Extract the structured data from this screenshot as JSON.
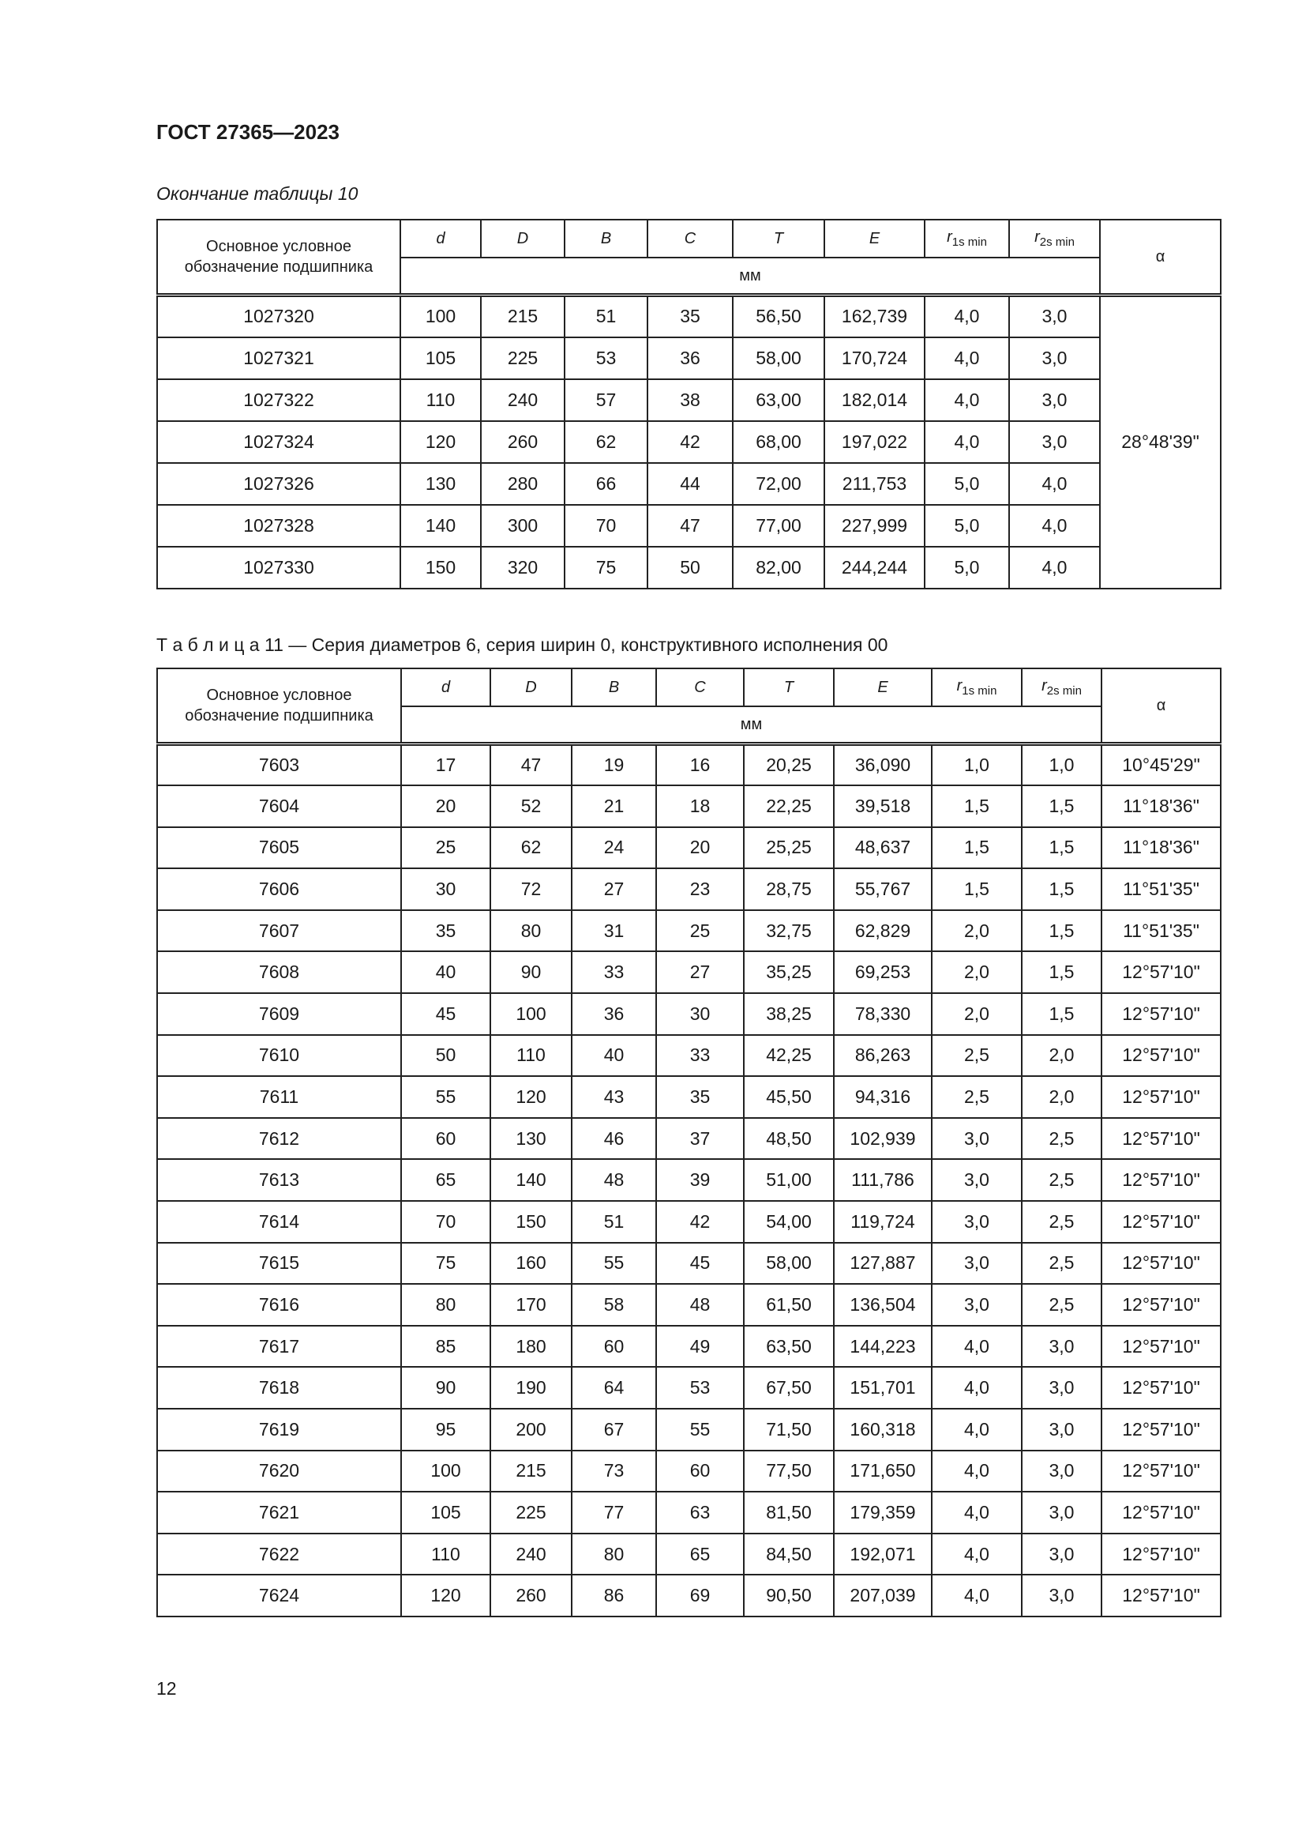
{
  "document_header": "ГОСТ 27365—2023",
  "page_number": "12",
  "columns": {
    "designation": "Основное условное обозначение подшипника",
    "symbols": [
      {
        "base": "d",
        "sub": ""
      },
      {
        "base": "D",
        "sub": ""
      },
      {
        "base": "B",
        "sub": ""
      },
      {
        "base": "C",
        "sub": ""
      },
      {
        "base": "T",
        "sub": ""
      },
      {
        "base": "E",
        "sub": ""
      },
      {
        "base": "r",
        "sub": "1s min"
      },
      {
        "base": "r",
        "sub": "2s min"
      }
    ],
    "units": "мм",
    "alpha": "α"
  },
  "table10": {
    "caption": "Окончание таблицы 10",
    "alpha_merged": "28°48'39\"",
    "rows": [
      [
        "1027320",
        "100",
        "215",
        "51",
        "35",
        "56,50",
        "162,739",
        "4,0",
        "3,0"
      ],
      [
        "1027321",
        "105",
        "225",
        "53",
        "36",
        "58,00",
        "170,724",
        "4,0",
        "3,0"
      ],
      [
        "1027322",
        "110",
        "240",
        "57",
        "38",
        "63,00",
        "182,014",
        "4,0",
        "3,0"
      ],
      [
        "1027324",
        "120",
        "260",
        "62",
        "42",
        "68,00",
        "197,022",
        "4,0",
        "3,0"
      ],
      [
        "1027326",
        "130",
        "280",
        "66",
        "44",
        "72,00",
        "211,753",
        "5,0",
        "4,0"
      ],
      [
        "1027328",
        "140",
        "300",
        "70",
        "47",
        "77,00",
        "227,999",
        "5,0",
        "4,0"
      ],
      [
        "1027330",
        "150",
        "320",
        "75",
        "50",
        "82,00",
        "244,244",
        "5,0",
        "4,0"
      ]
    ]
  },
  "table11": {
    "caption": "Т а б л и ц а  11 — Серия диаметров 6, серия ширин 0, конструктивного исполнения 00",
    "rows": [
      [
        "7603",
        "17",
        "47",
        "19",
        "16",
        "20,25",
        "36,090",
        "1,0",
        "1,0",
        "10°45'29\""
      ],
      [
        "7604",
        "20",
        "52",
        "21",
        "18",
        "22,25",
        "39,518",
        "1,5",
        "1,5",
        "11°18'36\""
      ],
      [
        "7605",
        "25",
        "62",
        "24",
        "20",
        "25,25",
        "48,637",
        "1,5",
        "1,5",
        "11°18'36\""
      ],
      [
        "7606",
        "30",
        "72",
        "27",
        "23",
        "28,75",
        "55,767",
        "1,5",
        "1,5",
        "11°51'35\""
      ],
      [
        "7607",
        "35",
        "80",
        "31",
        "25",
        "32,75",
        "62,829",
        "2,0",
        "1,5",
        "11°51'35\""
      ],
      [
        "7608",
        "40",
        "90",
        "33",
        "27",
        "35,25",
        "69,253",
        "2,0",
        "1,5",
        "12°57'10\""
      ],
      [
        "7609",
        "45",
        "100",
        "36",
        "30",
        "38,25",
        "78,330",
        "2,0",
        "1,5",
        "12°57'10\""
      ],
      [
        "7610",
        "50",
        "110",
        "40",
        "33",
        "42,25",
        "86,263",
        "2,5",
        "2,0",
        "12°57'10\""
      ],
      [
        "7611",
        "55",
        "120",
        "43",
        "35",
        "45,50",
        "94,316",
        "2,5",
        "2,0",
        "12°57'10\""
      ],
      [
        "7612",
        "60",
        "130",
        "46",
        "37",
        "48,50",
        "102,939",
        "3,0",
        "2,5",
        "12°57'10\""
      ],
      [
        "7613",
        "65",
        "140",
        "48",
        "39",
        "51,00",
        "111,786",
        "3,0",
        "2,5",
        "12°57'10\""
      ],
      [
        "7614",
        "70",
        "150",
        "51",
        "42",
        "54,00",
        "119,724",
        "3,0",
        "2,5",
        "12°57'10\""
      ],
      [
        "7615",
        "75",
        "160",
        "55",
        "45",
        "58,00",
        "127,887",
        "3,0",
        "2,5",
        "12°57'10\""
      ],
      [
        "7616",
        "80",
        "170",
        "58",
        "48",
        "61,50",
        "136,504",
        "3,0",
        "2,5",
        "12°57'10\""
      ],
      [
        "7617",
        "85",
        "180",
        "60",
        "49",
        "63,50",
        "144,223",
        "4,0",
        "3,0",
        "12°57'10\""
      ],
      [
        "7618",
        "90",
        "190",
        "64",
        "53",
        "67,50",
        "151,701",
        "4,0",
        "3,0",
        "12°57'10\""
      ],
      [
        "7619",
        "95",
        "200",
        "67",
        "55",
        "71,50",
        "160,318",
        "4,0",
        "3,0",
        "12°57'10\""
      ],
      [
        "7620",
        "100",
        "215",
        "73",
        "60",
        "77,50",
        "171,650",
        "4,0",
        "3,0",
        "12°57'10\""
      ],
      [
        "7621",
        "105",
        "225",
        "77",
        "63",
        "81,50",
        "179,359",
        "4,0",
        "3,0",
        "12°57'10\""
      ],
      [
        "7622",
        "110",
        "240",
        "80",
        "65",
        "84,50",
        "192,071",
        "4,0",
        "3,0",
        "12°57'10\""
      ],
      [
        "7624",
        "120",
        "260",
        "86",
        "69",
        "90,50",
        "207,039",
        "4,0",
        "3,0",
        "12°57'10\""
      ]
    ]
  }
}
